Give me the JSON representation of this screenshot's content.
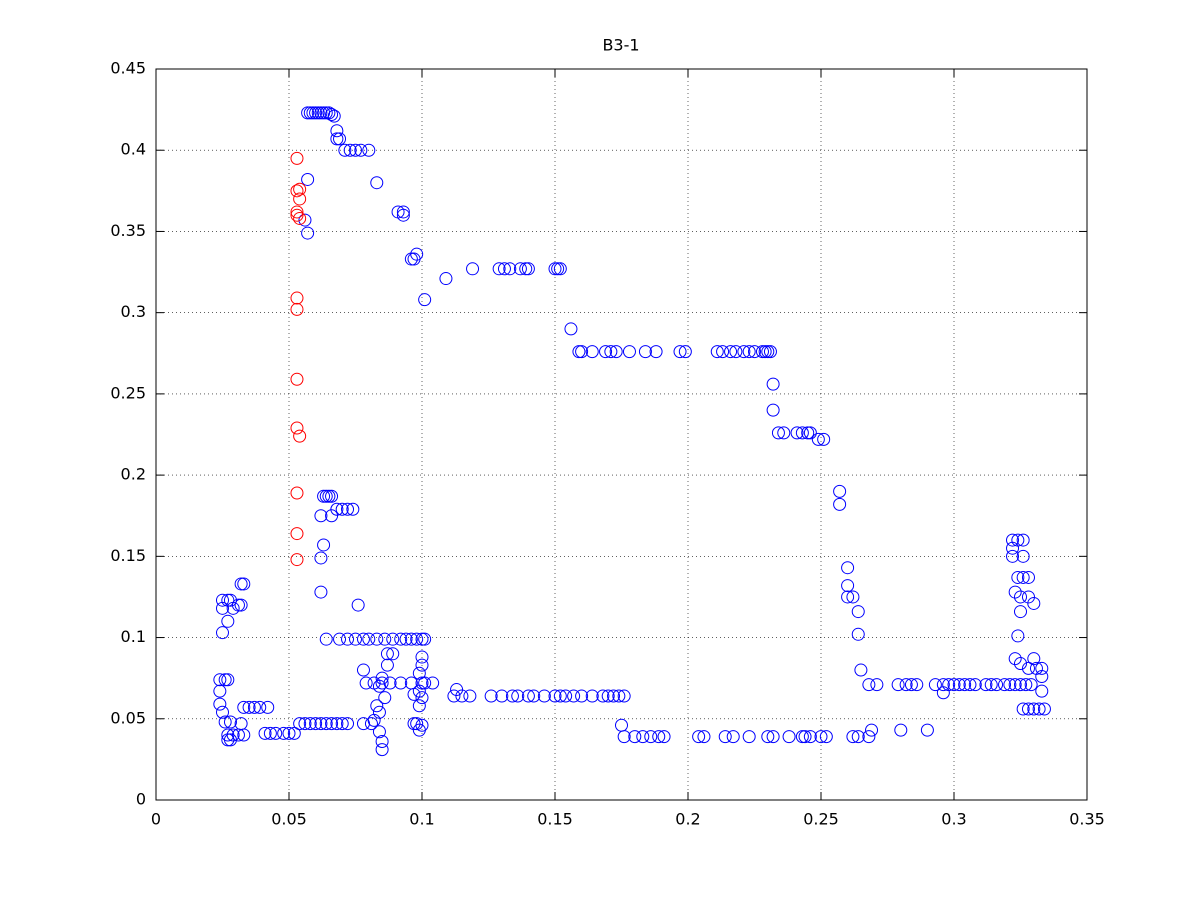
{
  "chart_data": {
    "type": "scatter",
    "title": "B3-1",
    "xlim": [
      0,
      0.35
    ],
    "ylim": [
      0,
      0.45
    ],
    "xticks": [
      0,
      0.05,
      0.1,
      0.15,
      0.2,
      0.25,
      0.3,
      0.35
    ],
    "yticks": [
      0,
      0.05,
      0.1,
      0.15,
      0.2,
      0.25,
      0.3,
      0.35,
      0.4,
      0.45
    ],
    "grid": true,
    "series": [
      {
        "color": "#0000ff",
        "x": [
          0.057,
          0.058,
          0.059,
          0.06,
          0.061,
          0.062,
          0.063,
          0.064,
          0.065,
          0.066,
          0.067,
          0.068,
          0.068,
          0.069,
          0.071,
          0.073,
          0.075,
          0.077,
          0.08,
          0.057,
          0.083,
          0.091,
          0.093,
          0.093,
          0.056,
          0.057,
          0.098,
          0.096,
          0.097,
          0.109,
          0.119,
          0.129,
          0.131,
          0.133,
          0.137,
          0.139,
          0.14,
          0.15,
          0.151,
          0.152,
          0.101,
          0.156,
          0.159,
          0.16,
          0.164,
          0.169,
          0.171,
          0.173,
          0.178,
          0.184,
          0.188,
          0.197,
          0.199,
          0.211,
          0.213,
          0.216,
          0.218,
          0.221,
          0.223,
          0.225,
          0.228,
          0.229,
          0.23,
          0.231,
          0.232,
          0.232,
          0.234,
          0.236,
          0.241,
          0.243,
          0.245,
          0.246,
          0.249,
          0.251,
          0.257,
          0.257,
          0.26,
          0.26,
          0.26,
          0.262,
          0.264,
          0.264,
          0.265,
          0.268,
          0.271,
          0.279,
          0.282,
          0.284,
          0.286,
          0.293,
          0.296,
          0.298,
          0.3,
          0.302,
          0.304,
          0.306,
          0.308,
          0.312,
          0.314,
          0.316,
          0.319,
          0.321,
          0.323,
          0.325,
          0.327,
          0.329,
          0.296,
          0.269,
          0.28,
          0.29,
          0.322,
          0.324,
          0.326,
          0.322,
          0.322,
          0.326,
          0.324,
          0.326,
          0.328,
          0.323,
          0.325,
          0.328,
          0.33,
          0.325,
          0.324,
          0.323,
          0.33,
          0.325,
          0.328,
          0.331,
          0.333,
          0.333,
          0.333,
          0.326,
          0.328,
          0.33,
          0.332,
          0.334,
          0.176,
          0.18,
          0.183,
          0.186,
          0.189,
          0.191,
          0.204,
          0.206,
          0.214,
          0.217,
          0.223,
          0.23,
          0.232,
          0.238,
          0.243,
          0.244,
          0.246,
          0.25,
          0.252,
          0.262,
          0.264,
          0.268,
          0.175,
          0.112,
          0.115,
          0.118,
          0.126,
          0.13,
          0.134,
          0.136,
          0.14,
          0.142,
          0.146,
          0.15,
          0.152,
          0.154,
          0.157,
          0.16,
          0.164,
          0.168,
          0.17,
          0.172,
          0.174,
          0.176,
          0.113,
          0.064,
          0.069,
          0.072,
          0.075,
          0.078,
          0.08,
          0.083,
          0.086,
          0.089,
          0.092,
          0.094,
          0.096,
          0.098,
          0.1,
          0.101,
          0.079,
          0.082,
          0.085,
          0.088,
          0.092,
          0.096,
          0.101,
          0.104,
          0.054,
          0.056,
          0.058,
          0.06,
          0.062,
          0.064,
          0.066,
          0.068,
          0.07,
          0.072,
          0.078,
          0.081,
          0.041,
          0.043,
          0.045,
          0.048,
          0.05,
          0.052,
          0.033,
          0.035,
          0.037,
          0.039,
          0.042,
          0.025,
          0.027,
          0.028,
          0.025,
          0.029,
          0.027,
          0.025,
          0.032,
          0.033,
          0.031,
          0.032,
          0.024,
          0.026,
          0.027,
          0.024,
          0.024,
          0.025,
          0.026,
          0.028,
          0.027,
          0.029,
          0.031,
          0.033,
          0.027,
          0.028,
          0.032,
          0.063,
          0.064,
          0.065,
          0.066,
          0.068,
          0.07,
          0.072,
          0.074,
          0.062,
          0.066,
          0.063,
          0.062,
          0.062,
          0.076,
          0.078,
          0.085,
          0.084,
          0.086,
          0.083,
          0.084,
          0.082,
          0.084,
          0.085,
          0.085,
          0.087,
          0.089,
          0.087,
          0.1,
          0.1,
          0.099,
          0.1,
          0.099,
          0.1,
          0.099,
          0.1,
          0.099,
          0.097,
          0.098,
          0.097
        ],
        "values": [
          0.423,
          0.423,
          0.423,
          0.423,
          0.423,
          0.423,
          0.423,
          0.423,
          0.423,
          0.422,
          0.421,
          0.412,
          0.407,
          0.407,
          0.4,
          0.4,
          0.4,
          0.4,
          0.4,
          0.382,
          0.38,
          0.362,
          0.362,
          0.36,
          0.357,
          0.349,
          0.336,
          0.333,
          0.333,
          0.321,
          0.327,
          0.327,
          0.327,
          0.327,
          0.327,
          0.327,
          0.327,
          0.327,
          0.327,
          0.327,
          0.308,
          0.29,
          0.276,
          0.276,
          0.276,
          0.276,
          0.276,
          0.276,
          0.276,
          0.276,
          0.276,
          0.276,
          0.276,
          0.276,
          0.276,
          0.276,
          0.276,
          0.276,
          0.276,
          0.276,
          0.276,
          0.276,
          0.276,
          0.276,
          0.256,
          0.24,
          0.226,
          0.226,
          0.226,
          0.226,
          0.226,
          0.226,
          0.222,
          0.222,
          0.19,
          0.182,
          0.143,
          0.132,
          0.125,
          0.125,
          0.116,
          0.102,
          0.08,
          0.071,
          0.071,
          0.071,
          0.071,
          0.071,
          0.071,
          0.071,
          0.071,
          0.071,
          0.071,
          0.071,
          0.071,
          0.071,
          0.071,
          0.071,
          0.071,
          0.071,
          0.071,
          0.071,
          0.071,
          0.071,
          0.071,
          0.071,
          0.066,
          0.043,
          0.043,
          0.043,
          0.16,
          0.16,
          0.16,
          0.155,
          0.15,
          0.15,
          0.137,
          0.137,
          0.137,
          0.128,
          0.125,
          0.125,
          0.121,
          0.116,
          0.101,
          0.087,
          0.087,
          0.084,
          0.081,
          0.081,
          0.081,
          0.076,
          0.067,
          0.056,
          0.056,
          0.056,
          0.056,
          0.056,
          0.039,
          0.039,
          0.039,
          0.039,
          0.039,
          0.039,
          0.039,
          0.039,
          0.039,
          0.039,
          0.039,
          0.039,
          0.039,
          0.039,
          0.039,
          0.039,
          0.039,
          0.039,
          0.039,
          0.039,
          0.039,
          0.039,
          0.046,
          0.064,
          0.064,
          0.064,
          0.064,
          0.064,
          0.064,
          0.064,
          0.064,
          0.064,
          0.064,
          0.064,
          0.064,
          0.064,
          0.064,
          0.064,
          0.064,
          0.064,
          0.064,
          0.064,
          0.064,
          0.064,
          0.068,
          0.099,
          0.099,
          0.099,
          0.099,
          0.099,
          0.099,
          0.099,
          0.099,
          0.099,
          0.099,
          0.099,
          0.099,
          0.099,
          0.099,
          0.099,
          0.072,
          0.072,
          0.072,
          0.072,
          0.072,
          0.072,
          0.072,
          0.072,
          0.047,
          0.047,
          0.047,
          0.047,
          0.047,
          0.047,
          0.047,
          0.047,
          0.047,
          0.047,
          0.047,
          0.047,
          0.041,
          0.041,
          0.041,
          0.041,
          0.041,
          0.041,
          0.057,
          0.057,
          0.057,
          0.057,
          0.057,
          0.123,
          0.123,
          0.123,
          0.118,
          0.118,
          0.11,
          0.103,
          0.133,
          0.133,
          0.12,
          0.12,
          0.074,
          0.074,
          0.074,
          0.067,
          0.059,
          0.054,
          0.048,
          0.048,
          0.04,
          0.04,
          0.04,
          0.04,
          0.037,
          0.037,
          0.047,
          0.187,
          0.187,
          0.187,
          0.187,
          0.179,
          0.179,
          0.179,
          0.179,
          0.175,
          0.175,
          0.157,
          0.149,
          0.128,
          0.12,
          0.08,
          0.075,
          0.07,
          0.063,
          0.058,
          0.054,
          0.049,
          0.042,
          0.036,
          0.031,
          0.09,
          0.09,
          0.083,
          0.088,
          0.083,
          0.078,
          0.072,
          0.067,
          0.063,
          0.058,
          0.046,
          0.043,
          0.047,
          0.047,
          0.065
        ]
      },
      {
        "color": "#ff0000",
        "x": [
          0.053,
          0.054,
          0.053,
          0.054,
          0.053,
          0.053,
          0.054,
          0.053,
          0.053,
          0.053,
          0.053,
          0.054,
          0.053,
          0.053,
          0.053
        ],
        "values": [
          0.395,
          0.376,
          0.375,
          0.37,
          0.362,
          0.36,
          0.358,
          0.309,
          0.302,
          0.259,
          0.229,
          0.224,
          0.189,
          0.164,
          0.148
        ]
      }
    ]
  }
}
